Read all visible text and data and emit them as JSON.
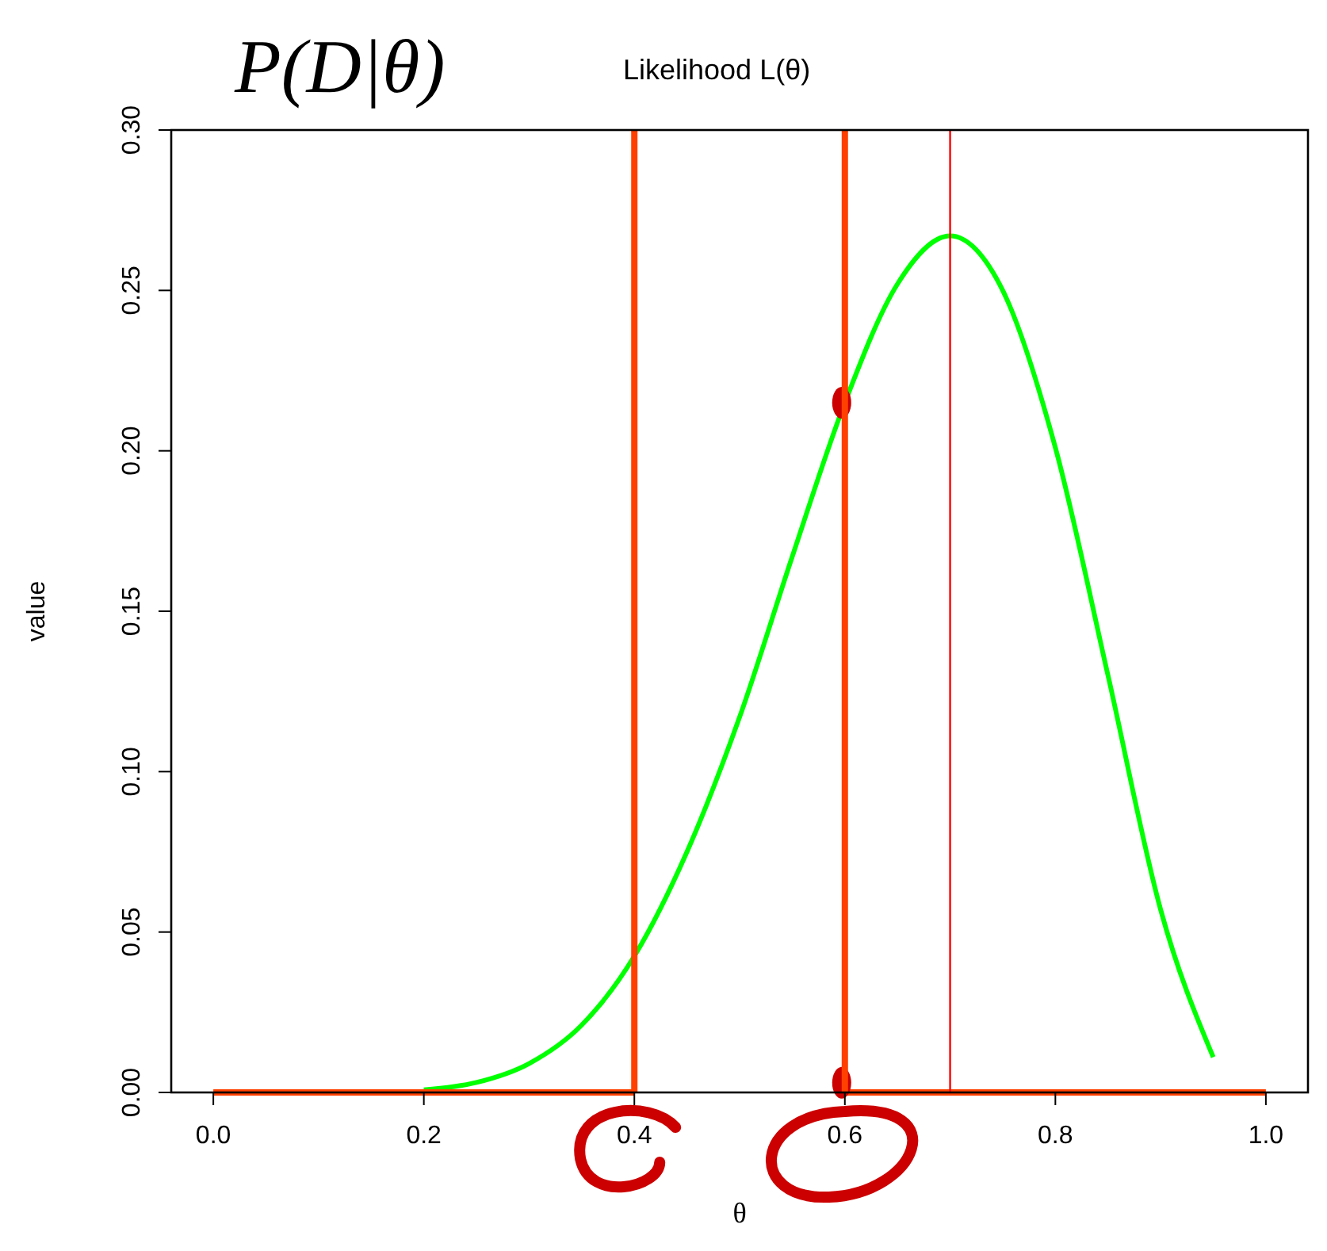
{
  "chart_data": {
    "type": "line",
    "title": "Likelihood L(θ)",
    "xlabel": "θ",
    "ylabel": "value",
    "annotations": [
      "P(D|θ)"
    ],
    "xlim": [
      -0.04,
      1.04
    ],
    "xticks": [
      {
        "value": 0,
        "label": "0.0"
      },
      0.2,
      0.4,
      0.6,
      0.8,
      {
        "value": 1,
        "label": "1.0"
      }
    ],
    "ylim": [
      0,
      0.3
    ],
    "yticks": [
      {
        "value": 0,
        "label": "0.00"
      },
      0.05,
      {
        "value": 0.1,
        "label": "0.10"
      },
      0.15,
      {
        "value": 0.2,
        "label": "0.20"
      },
      0.25,
      {
        "value": 0.3,
        "label": "0.30"
      }
    ],
    "grid": false,
    "series": [
      {
        "color": "#00ff00",
        "x": [
          0.2,
          0.25,
          0.3,
          0.35,
          0.4,
          0.45,
          0.5,
          0.55,
          0.6,
          0.65,
          0.7,
          0.75,
          0.8,
          0.85,
          0.9,
          0.95
        ],
        "values": [
          0.0008,
          0.0031,
          0.009,
          0.021,
          0.0425,
          0.075,
          0.117,
          0.167,
          0.215,
          0.252,
          0.267,
          0.25,
          0.201,
          0.13,
          0.057,
          0.011
        ]
      },
      {
        "color": "#ff4000",
        "x": [
          0,
          0.4
        ],
        "values": [
          0,
          0
        ]
      },
      {
        "color": "#ff4000",
        "x": [
          0.6,
          1.0
        ],
        "values": [
          0,
          0
        ]
      },
      {
        "type": "scatter",
        "color": "#cc0000",
        "marker": "circle",
        "x": [
          0.6,
          0.6
        ],
        "values": [
          0.215,
          0.003
        ]
      }
    ],
    "ref_lines": [
      {
        "axis": "x",
        "value": 0.4,
        "color": "#ff4000",
        "line_style": "solid"
      },
      {
        "axis": "x",
        "value": 0.6,
        "color": "#ff4000",
        "line_style": "solid"
      },
      {
        "axis": "x",
        "value": 0.7,
        "color": "#ff0000"
      }
    ]
  }
}
